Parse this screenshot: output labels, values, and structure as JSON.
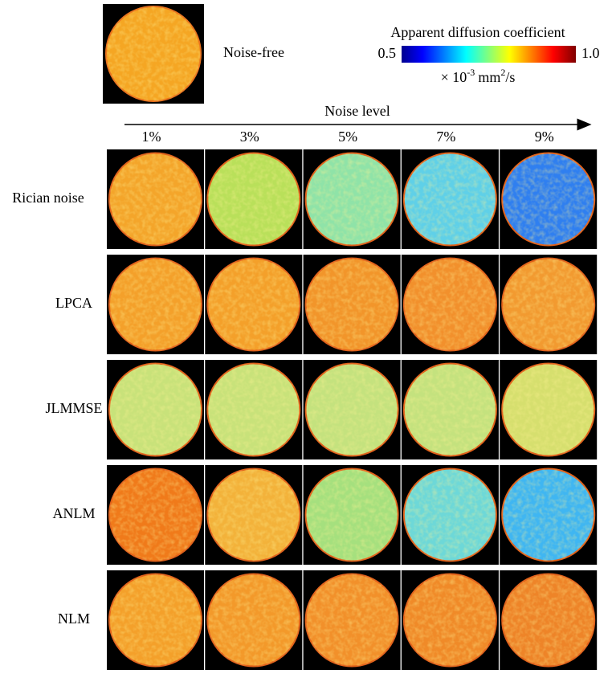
{
  "reference": {
    "label": "Noise-free"
  },
  "colorbar": {
    "title": "Apparent diffusion coefficient",
    "ticks": [
      0.5,
      {
        "value": 1.0,
        "label": "1.0"
      }
    ],
    "unit": {
      "base": "× 10",
      "exp": "-3",
      "unit": "mm",
      "unit_exp": "2",
      "suffix": "/s"
    }
  },
  "axis_label": "Noise level",
  "columns": [
    "1%",
    "3%",
    "5%",
    "7%",
    "9%"
  ],
  "rows": [
    "Rician noise",
    "LPCA",
    "JLMMSE",
    "ANLM",
    "NLM"
  ]
}
